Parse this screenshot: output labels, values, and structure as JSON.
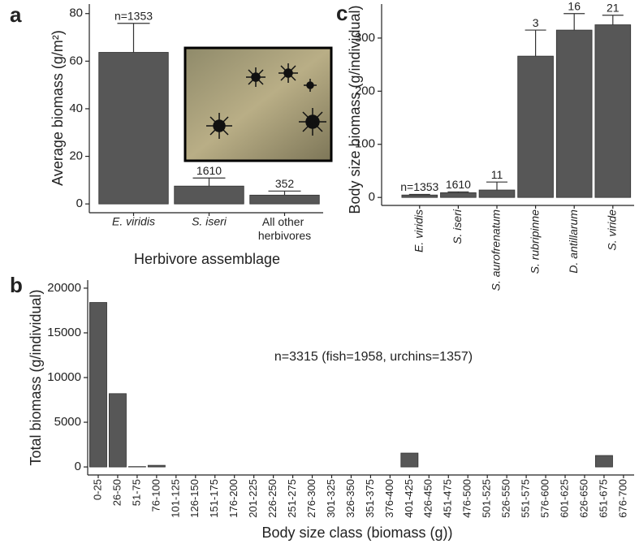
{
  "chart_data": [
    {
      "type": "bar",
      "panel": "a",
      "xlabel": "Herbivore assemblage",
      "ylabel": "Average biomass (g/m²)",
      "categories": [
        "E. viridis",
        "S. iseri",
        "All other herbivores"
      ],
      "italic_categories": [
        true,
        true,
        false
      ],
      "values": [
        63.7,
        7.5,
        3.7
      ],
      "errors": [
        12.2,
        3.4,
        1.7
      ],
      "n_labels": [
        "n=1353",
        "1610",
        "352"
      ],
      "color": "#575757",
      "ylim": [
        -3.7,
        84
      ],
      "yticks": [
        0,
        20,
        40,
        60,
        80
      ]
    },
    {
      "type": "bar",
      "panel": "c",
      "ylabel": "Body size biomass (g/individual)",
      "categories": [
        "E. viridis",
        "S. iseri",
        "S. aurofrenatum",
        "S. rubripinne",
        "D. antillarum",
        "S. viride"
      ],
      "italic_categories": [
        true,
        true,
        true,
        true,
        true,
        true
      ],
      "values": [
        4.6,
        9,
        14,
        266,
        315,
        325
      ],
      "errors": [
        1,
        1.5,
        15,
        49,
        31,
        18
      ],
      "n_labels": [
        "n=1353",
        "1610",
        "11",
        "3",
        "16",
        "21"
      ],
      "color": "#575757",
      "ylim": [
        -15,
        364
      ],
      "yticks": [
        0,
        100,
        200,
        300
      ]
    },
    {
      "type": "bar",
      "panel": "b",
      "xlabel": "Body size class (biomass (g))",
      "ylabel": "Total biomass (g/individual)",
      "annotation": "n=3315 (fish=1958, urchins=1357)",
      "categories": [
        "0-25",
        "26-50",
        "51-75",
        "76-100",
        "101-125",
        "126-150",
        "151-175",
        "176-200",
        "201-225",
        "226-250",
        "251-275",
        "276-300",
        "301-325",
        "326-350",
        "351-375",
        "376-400",
        "401-425",
        "426-450",
        "451-475",
        "476-500",
        "501-525",
        "526-550",
        "551-575",
        "576-600",
        "601-625",
        "626-650",
        "651-675",
        "676-700"
      ],
      "values": [
        18400,
        8200,
        40,
        180,
        0,
        0,
        0,
        0,
        0,
        0,
        0,
        0,
        0,
        0,
        0,
        0,
        1550,
        0,
        0,
        0,
        0,
        0,
        0,
        0,
        0,
        0,
        1280,
        0
      ],
      "color": "#575757",
      "ylim": [
        -900,
        20900
      ],
      "yticks": [
        0,
        5000,
        10000,
        15000,
        20000
      ]
    }
  ]
}
